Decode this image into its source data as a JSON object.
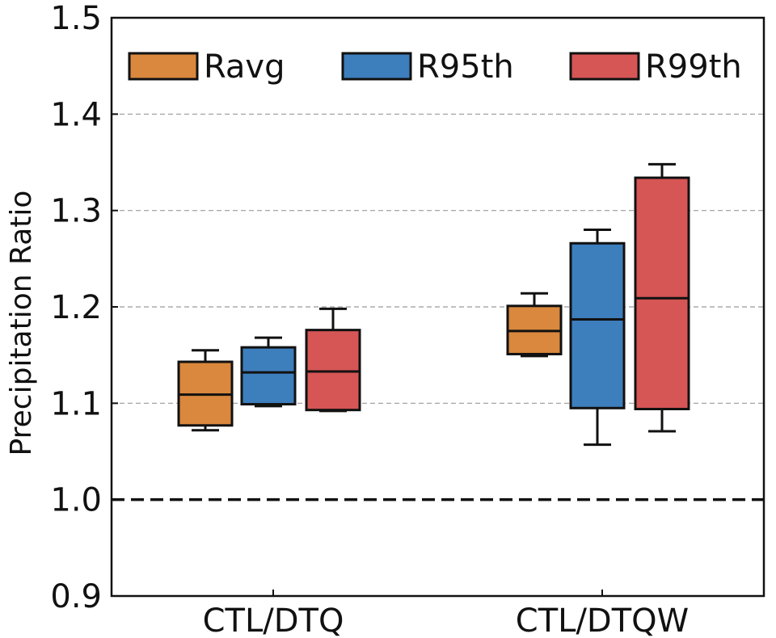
{
  "chart_data": {
    "type": "box",
    "ylabel": "Precipitation Ratio",
    "ylim": [
      0.9,
      1.5
    ],
    "yticks": [
      "0.9",
      "1.0",
      "1.1",
      "1.2",
      "1.3",
      "1.4",
      "1.5"
    ],
    "grid": "horizontal dashed at 1.1, 1.2, 1.3, 1.4",
    "reference_line": {
      "y": 1.0,
      "style": "dashed"
    },
    "legend_position": "top",
    "categories": [
      "CTL/DTQ",
      "CTL/DTQW"
    ],
    "series": [
      {
        "name": "Ravg",
        "color": "#d9883d",
        "boxes": [
          {
            "whisker_low": 1.072,
            "q1": 1.077,
            "median": 1.109,
            "q3": 1.143,
            "whisker_high": 1.155
          },
          {
            "whisker_low": 1.149,
            "q1": 1.151,
            "median": 1.175,
            "q3": 1.201,
            "whisker_high": 1.214
          }
        ]
      },
      {
        "name": "R95th",
        "color": "#3d7ebd",
        "boxes": [
          {
            "whisker_low": 1.097,
            "q1": 1.099,
            "median": 1.132,
            "q3": 1.158,
            "whisker_high": 1.168
          },
          {
            "whisker_low": 1.057,
            "q1": 1.095,
            "median": 1.187,
            "q3": 1.266,
            "whisker_high": 1.28
          }
        ]
      },
      {
        "name": "R99th",
        "color": "#d65555",
        "boxes": [
          {
            "whisker_low": 1.092,
            "q1": 1.093,
            "median": 1.133,
            "q3": 1.176,
            "whisker_high": 1.198
          },
          {
            "whisker_low": 1.071,
            "q1": 1.094,
            "median": 1.209,
            "q3": 1.334,
            "whisker_high": 1.348
          }
        ]
      }
    ]
  }
}
